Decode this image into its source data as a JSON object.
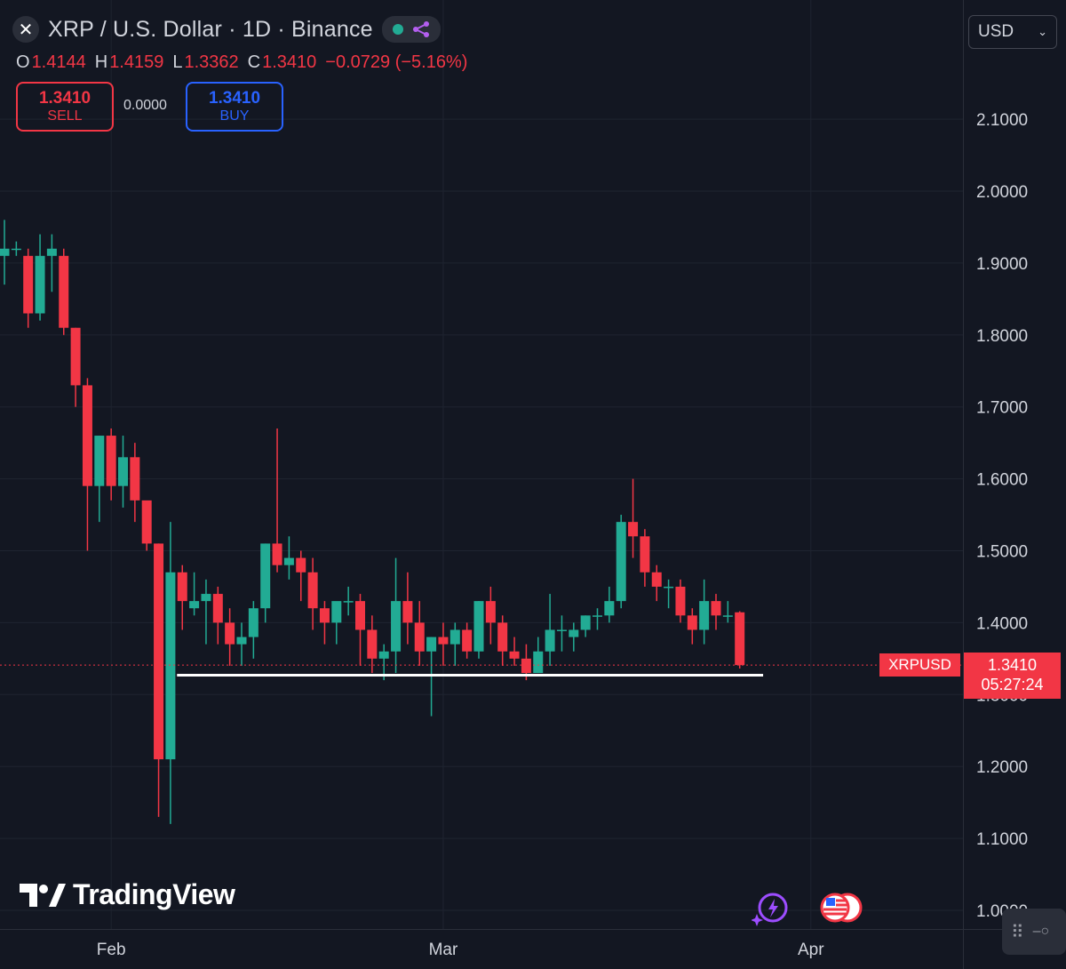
{
  "header": {
    "title": "XRP / U.S. Dollar · 1D · Binance",
    "ohlc": {
      "o_label": "O",
      "o": "1.4144",
      "h_label": "H",
      "h": "1.4159",
      "l_label": "L",
      "l": "1.3362",
      "c_label": "C",
      "c": "1.3410",
      "change": "−0.0729 (−5.16%)"
    },
    "sell": {
      "price": "1.3410",
      "label": "SELL"
    },
    "buy": {
      "price": "1.3410",
      "label": "BUY"
    },
    "spread": "0.0000",
    "currency": "USD"
  },
  "price_tag": {
    "symbol": "XRPUSD",
    "price": "1.3410",
    "countdown": "05:27:24"
  },
  "branding": {
    "logo_text": "TradingView"
  },
  "colors": {
    "up": "#22ab94",
    "down": "#f23645",
    "background": "#131722",
    "grid": "#1f2430",
    "support_line": "#ffffff"
  },
  "chart_data": {
    "type": "candlestick",
    "interval": "1D",
    "y_ticks": [
      "2.1000",
      "2.0000",
      "1.9000",
      "1.8000",
      "1.7000",
      "1.6000",
      "1.5000",
      "1.4000",
      "1.3000",
      "1.2000",
      "1.1000",
      "1.0000"
    ],
    "y_tick_values": [
      2.1,
      2.0,
      1.9,
      1.8,
      1.7,
      1.6,
      1.5,
      1.4,
      1.3,
      1.2,
      1.1,
      1.0
    ],
    "x_labels": [
      {
        "label": "Feb",
        "date": "Feb 1"
      },
      {
        "label": "Mar",
        "date": "Mar 1"
      },
      {
        "label": "Apr",
        "date": "Apr 1"
      }
    ],
    "first_date": "Jan 23",
    "candles": [
      [
        "Jan 23",
        1.91,
        1.96,
        1.87,
        1.92
      ],
      [
        "Jan 24",
        1.92,
        1.93,
        1.91,
        1.92
      ],
      [
        "Jan 25",
        1.91,
        1.92,
        1.81,
        1.83
      ],
      [
        "Jan 26",
        1.83,
        1.94,
        1.82,
        1.91
      ],
      [
        "Jan 27",
        1.91,
        1.94,
        1.86,
        1.92
      ],
      [
        "Jan 28",
        1.91,
        1.92,
        1.8,
        1.81
      ],
      [
        "Jan 29",
        1.81,
        1.81,
        1.7,
        1.73
      ],
      [
        "Jan 30",
        1.73,
        1.74,
        1.5,
        1.59
      ],
      [
        "Jan 31",
        1.59,
        1.66,
        1.54,
        1.66
      ],
      [
        "Feb 1",
        1.66,
        1.67,
        1.57,
        1.59
      ],
      [
        "Feb 2",
        1.59,
        1.66,
        1.56,
        1.63
      ],
      [
        "Feb 3",
        1.63,
        1.65,
        1.54,
        1.57
      ],
      [
        "Feb 4",
        1.57,
        1.56,
        1.5,
        1.51
      ],
      [
        "Feb 5",
        1.51,
        1.51,
        1.13,
        1.21
      ],
      [
        "Feb 6",
        1.21,
        1.54,
        1.12,
        1.47
      ],
      [
        "Feb 7",
        1.47,
        1.48,
        1.39,
        1.43
      ],
      [
        "Feb 8",
        1.42,
        1.47,
        1.41,
        1.43
      ],
      [
        "Feb 9",
        1.43,
        1.46,
        1.37,
        1.44
      ],
      [
        "Feb 10",
        1.44,
        1.45,
        1.37,
        1.4
      ],
      [
        "Feb 11",
        1.4,
        1.42,
        1.34,
        1.37
      ],
      [
        "Feb 12",
        1.37,
        1.4,
        1.34,
        1.38
      ],
      [
        "Feb 13",
        1.38,
        1.43,
        1.35,
        1.42
      ],
      [
        "Feb 14",
        1.42,
        1.51,
        1.4,
        1.51
      ],
      [
        "Feb 15",
        1.51,
        1.67,
        1.47,
        1.48
      ],
      [
        "Feb 16",
        1.48,
        1.52,
        1.46,
        1.49
      ],
      [
        "Feb 17",
        1.49,
        1.5,
        1.43,
        1.47
      ],
      [
        "Feb 18",
        1.47,
        1.49,
        1.39,
        1.42
      ],
      [
        "Feb 19",
        1.42,
        1.43,
        1.37,
        1.4
      ],
      [
        "Feb 20",
        1.4,
        1.42,
        1.37,
        1.43
      ],
      [
        "Feb 21",
        1.43,
        1.45,
        1.41,
        1.43
      ],
      [
        "Feb 22",
        1.43,
        1.44,
        1.34,
        1.39
      ],
      [
        "Feb 23",
        1.39,
        1.41,
        1.33,
        1.35
      ],
      [
        "Feb 24",
        1.35,
        1.37,
        1.32,
        1.36
      ],
      [
        "Feb 25",
        1.36,
        1.49,
        1.33,
        1.43
      ],
      [
        "Feb 26",
        1.43,
        1.47,
        1.37,
        1.4
      ],
      [
        "Feb 27",
        1.4,
        1.43,
        1.34,
        1.36
      ],
      [
        "Feb 28",
        1.36,
        1.38,
        1.27,
        1.38
      ],
      [
        "Mar 1",
        1.38,
        1.4,
        1.34,
        1.37
      ],
      [
        "Mar 2",
        1.37,
        1.4,
        1.34,
        1.39
      ],
      [
        "Mar 3",
        1.39,
        1.4,
        1.35,
        1.36
      ],
      [
        "Mar 4",
        1.36,
        1.43,
        1.35,
        1.43
      ],
      [
        "Mar 5",
        1.43,
        1.45,
        1.37,
        1.4
      ],
      [
        "Mar 6",
        1.4,
        1.41,
        1.34,
        1.36
      ],
      [
        "Mar 7",
        1.36,
        1.38,
        1.34,
        1.35
      ],
      [
        "Mar 8",
        1.35,
        1.37,
        1.32,
        1.33
      ],
      [
        "Mar 9",
        1.33,
        1.38,
        1.33,
        1.36
      ],
      [
        "Mar 10",
        1.36,
        1.44,
        1.34,
        1.39
      ],
      [
        "Mar 11",
        1.39,
        1.41,
        1.36,
        1.39
      ],
      [
        "Mar 12",
        1.38,
        1.4,
        1.36,
        1.39
      ],
      [
        "Mar 13",
        1.39,
        1.41,
        1.38,
        1.41
      ],
      [
        "Mar 14",
        1.41,
        1.42,
        1.39,
        1.41
      ],
      [
        "Mar 15",
        1.41,
        1.45,
        1.4,
        1.43
      ],
      [
        "Mar 16",
        1.43,
        1.55,
        1.42,
        1.54
      ],
      [
        "Mar 17",
        1.54,
        1.6,
        1.49,
        1.52
      ],
      [
        "Mar 18",
        1.52,
        1.53,
        1.45,
        1.47
      ],
      [
        "Mar 19",
        1.47,
        1.48,
        1.43,
        1.45
      ],
      [
        "Mar 20",
        1.45,
        1.46,
        1.42,
        1.45
      ],
      [
        "Mar 21",
        1.45,
        1.46,
        1.4,
        1.41
      ],
      [
        "Mar 22",
        1.41,
        1.42,
        1.37,
        1.39
      ],
      [
        "Mar 23",
        1.39,
        1.46,
        1.37,
        1.43
      ],
      [
        "Mar 24",
        1.43,
        1.44,
        1.39,
        1.41
      ],
      [
        "Mar 25",
        1.41,
        1.43,
        1.4,
        1.41
      ],
      [
        "Mar 26",
        1.4144,
        1.4159,
        1.3362,
        1.341
      ]
    ],
    "current_price": 1.341,
    "support_level": 1.327,
    "support_start": "Feb 7",
    "support_end": "Mar 27",
    "y_range": [
      0.985,
      2.2
    ],
    "grid": true
  }
}
